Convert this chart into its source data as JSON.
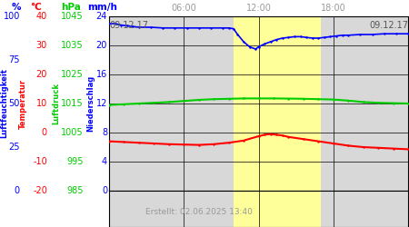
{
  "title_left": "09.12.17",
  "title_right": "09.12.17",
  "created": "Erstellt: 02.06.2025 13:40",
  "time_labels": [
    "06:00",
    "12:00",
    "18:00"
  ],
  "yellow_region": [
    0.416,
    0.708
  ],
  "yellow_color": "#ffff99",
  "plot_bg": "#d8d8d8",
  "blue_data_x": [
    0.0,
    0.02,
    0.04,
    0.06,
    0.08,
    0.1,
    0.14,
    0.18,
    0.22,
    0.26,
    0.3,
    0.34,
    0.38,
    0.4,
    0.416,
    0.43,
    0.45,
    0.47,
    0.49,
    0.5,
    0.52,
    0.54,
    0.56,
    0.58,
    0.6,
    0.62,
    0.64,
    0.66,
    0.68,
    0.7,
    0.72,
    0.74,
    0.76,
    0.78,
    0.8,
    0.84,
    0.88,
    0.92,
    0.96,
    1.0
  ],
  "blue_data_y": [
    23.0,
    23.0,
    22.8,
    22.7,
    22.6,
    22.5,
    22.5,
    22.4,
    22.4,
    22.4,
    22.4,
    22.4,
    22.4,
    22.4,
    22.3,
    21.5,
    20.5,
    19.8,
    19.5,
    19.8,
    20.2,
    20.5,
    20.8,
    21.0,
    21.1,
    21.2,
    21.2,
    21.1,
    21.0,
    21.0,
    21.1,
    21.2,
    21.3,
    21.4,
    21.4,
    21.5,
    21.5,
    21.6,
    21.6,
    21.6
  ],
  "green_data_x": [
    0.0,
    0.05,
    0.1,
    0.15,
    0.2,
    0.25,
    0.3,
    0.35,
    0.4,
    0.45,
    0.5,
    0.55,
    0.6,
    0.65,
    0.7,
    0.75,
    0.8,
    0.85,
    0.9,
    0.95,
    1.0
  ],
  "green_data_y": [
    11.8,
    11.9,
    12.0,
    12.1,
    12.2,
    12.35,
    12.5,
    12.6,
    12.65,
    12.7,
    12.7,
    12.7,
    12.68,
    12.65,
    12.6,
    12.55,
    12.4,
    12.2,
    12.1,
    12.05,
    12.0
  ],
  "red_data_x": [
    0.0,
    0.05,
    0.1,
    0.15,
    0.2,
    0.25,
    0.3,
    0.35,
    0.4,
    0.45,
    0.5,
    0.52,
    0.54,
    0.56,
    0.58,
    0.6,
    0.65,
    0.7,
    0.75,
    0.8,
    0.85,
    0.9,
    0.95,
    1.0
  ],
  "red_data_y": [
    6.8,
    6.7,
    6.6,
    6.5,
    6.4,
    6.35,
    6.3,
    6.4,
    6.6,
    6.9,
    7.5,
    7.7,
    7.8,
    7.7,
    7.6,
    7.4,
    7.1,
    6.8,
    6.5,
    6.2,
    6.0,
    5.9,
    5.8,
    5.7
  ],
  "pct_vals": [
    0,
    25,
    50,
    75,
    100
  ],
  "temp_vals": [
    -20,
    -10,
    0,
    10,
    20,
    30,
    40
  ],
  "hpa_vals": [
    985,
    995,
    1005,
    1015,
    1025,
    1035,
    1045
  ],
  "mm_vals": [
    0,
    4,
    8,
    12,
    16,
    20,
    24
  ]
}
